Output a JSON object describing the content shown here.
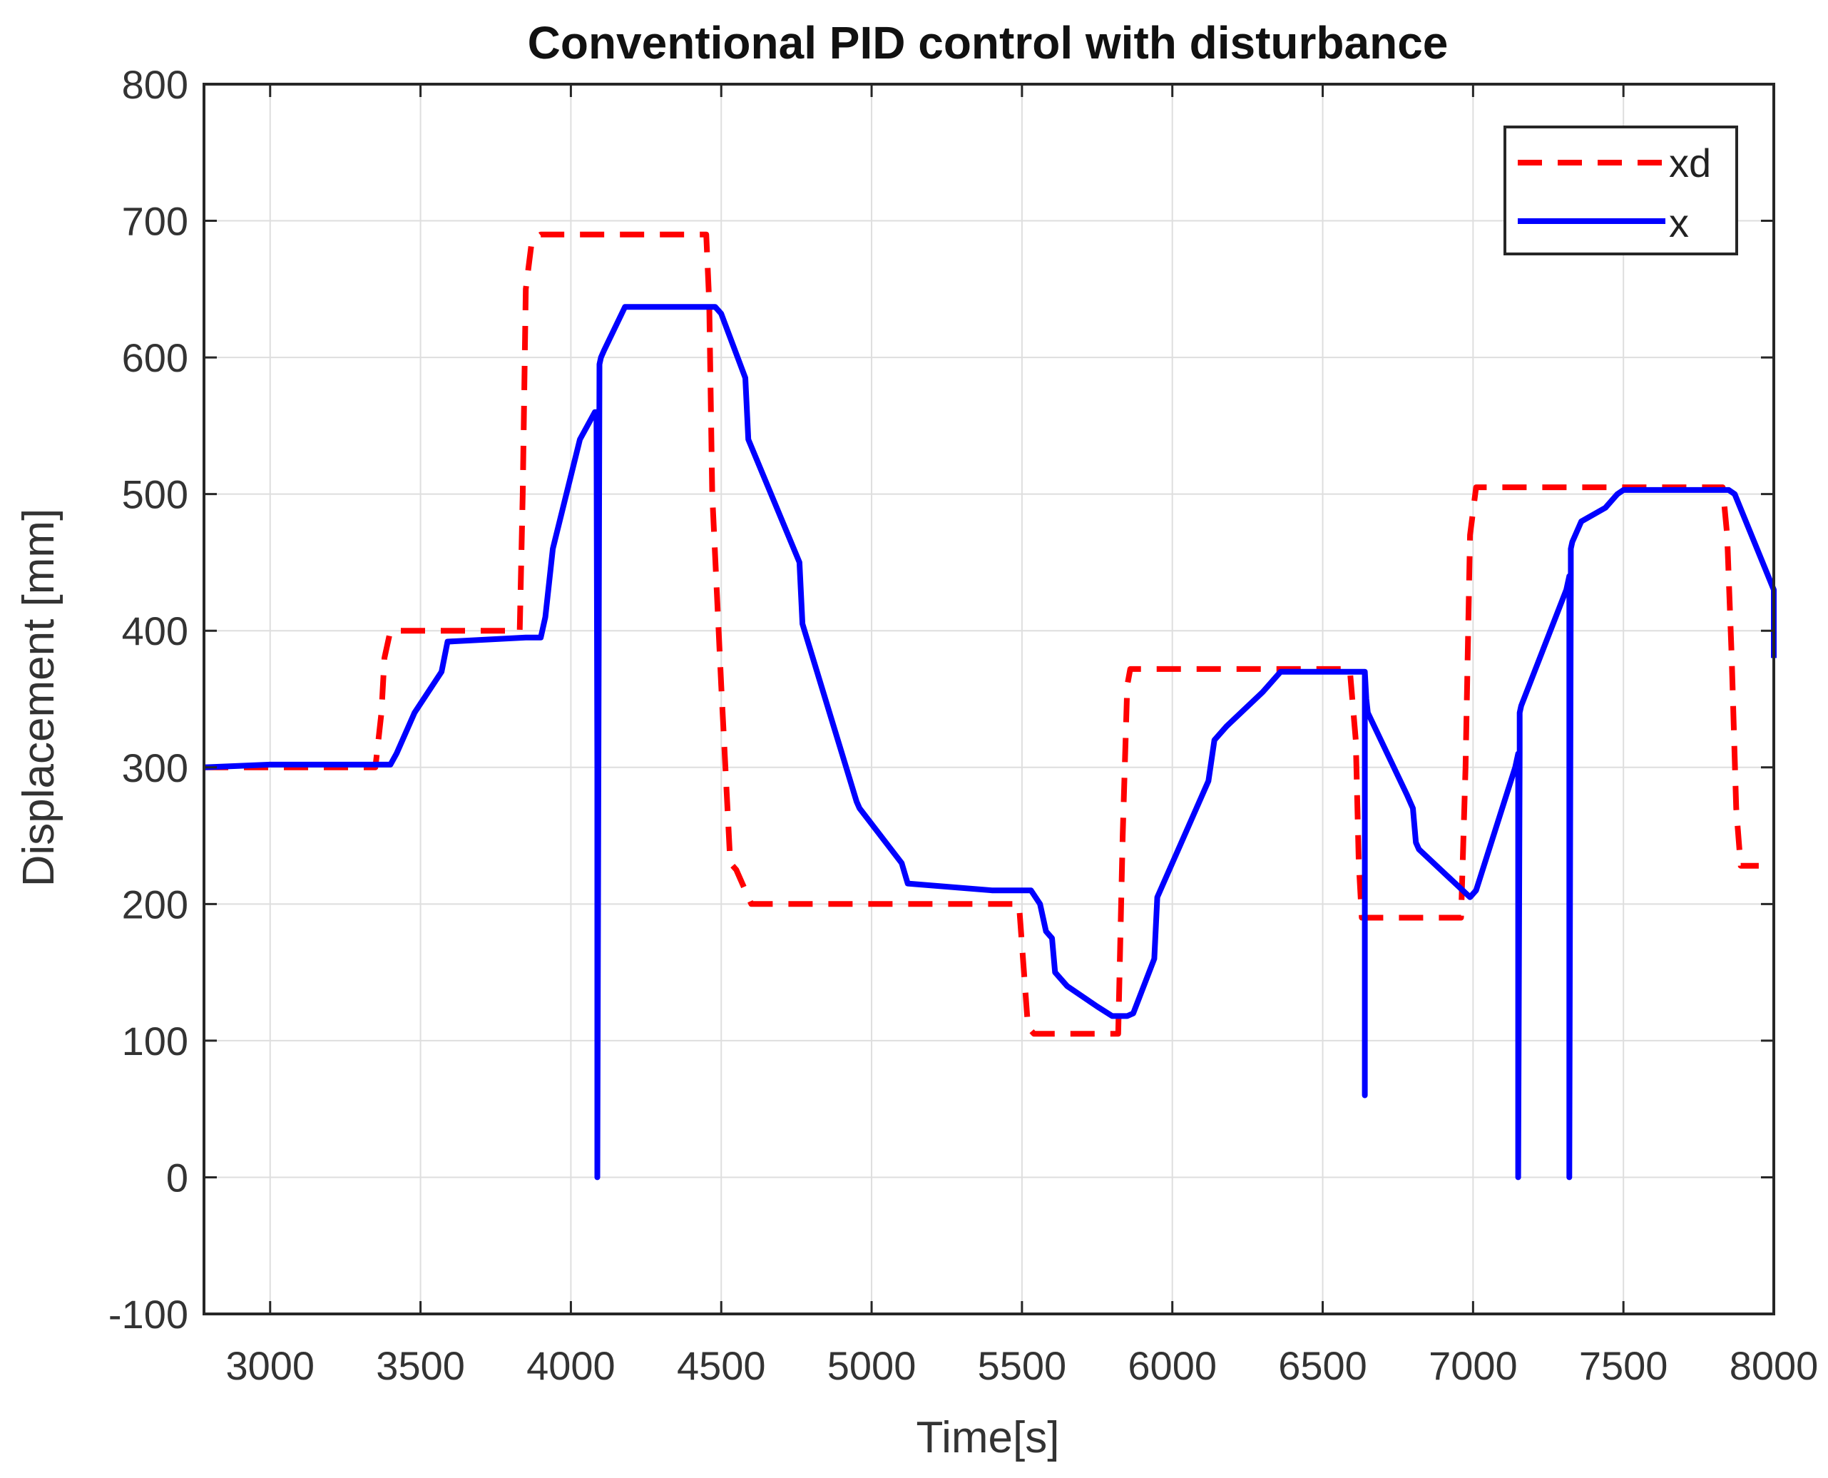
{
  "chart_data": {
    "type": "line",
    "title": "Conventional PID control with disturbance",
    "xlabel": "Time[s]",
    "ylabel": "Displacement [mm]",
    "xlim": [
      2780,
      8000
    ],
    "ylim": [
      -100,
      800
    ],
    "xticks": [
      3000,
      3500,
      4000,
      4500,
      5000,
      5500,
      6000,
      6500,
      7000,
      7500,
      8000
    ],
    "yticks": [
      800,
      700,
      600,
      500,
      400,
      300,
      200,
      100,
      0,
      -100
    ],
    "grid": true,
    "legend": "top-right",
    "series": [
      {
        "name": "xd",
        "color": "#ff0000",
        "style": "dashed",
        "x": [
          2780,
          3350,
          3370,
          3380,
          3400,
          3830,
          3840,
          3850,
          3870,
          3900,
          4450,
          4460,
          4470,
          4500,
          4530,
          4550,
          4600,
          4610,
          5490,
          5500,
          5520,
          5540,
          5820,
          5835,
          5850,
          5860,
          6590,
          6610,
          6620,
          6630,
          6960,
          6975,
          6990,
          7010,
          7830,
          7845,
          7860,
          7875,
          7890,
          7950
        ],
        "y": [
          300,
          300,
          340,
          380,
          400,
          400,
          500,
          650,
          685,
          690,
          690,
          640,
          500,
          360,
          230,
          225,
          200,
          200,
          200,
          170,
          110,
          105,
          105,
          250,
          360,
          372,
          372,
          320,
          230,
          190,
          190,
          300,
          470,
          505,
          505,
          470,
          380,
          270,
          228,
          228
        ]
      },
      {
        "name": "x",
        "color": "#0000ff",
        "style": "solid",
        "x": [
          2780,
          3000,
          3200,
          3400,
          3420,
          3480,
          3570,
          3590,
          3850,
          3900,
          3915,
          3920,
          3940,
          4030,
          4080,
          4085,
          4088,
          4088,
          4095,
          4100,
          4110,
          4180,
          4200,
          4480,
          4500,
          4580,
          4590,
          4760,
          4770,
          4950,
          4960,
          5100,
          5120,
          5400,
          5530,
          5560,
          5580,
          5600,
          5610,
          5650,
          5750,
          5800,
          5850,
          5870,
          5940,
          5950,
          6120,
          6140,
          6180,
          6300,
          6360,
          6640,
          6640,
          6640,
          6645,
          6650,
          6780,
          6800,
          6810,
          6820,
          6990,
          7010,
          7140,
          7150,
          7150,
          7155,
          7155,
          7160,
          7310,
          7320,
          7320,
          7325,
          7325,
          7330,
          7360,
          7440,
          7480,
          7500,
          7820,
          7850,
          7870,
          8000,
          8000
        ],
        "y": [
          300,
          302,
          302,
          302,
          310,
          340,
          370,
          392,
          395,
          395,
          410,
          420,
          460,
          540,
          560,
          560,
          300,
          0,
          595,
          600,
          605,
          637,
          637,
          637,
          632,
          585,
          540,
          450,
          405,
          275,
          270,
          230,
          215,
          210,
          210,
          200,
          180,
          175,
          150,
          140,
          125,
          118,
          118,
          120,
          160,
          205,
          290,
          320,
          330,
          355,
          370,
          370,
          60,
          370,
          350,
          340,
          280,
          270,
          245,
          240,
          205,
          210,
          300,
          310,
          0,
          310,
          340,
          345,
          430,
          440,
          0,
          440,
          460,
          465,
          480,
          490,
          500,
          503,
          503,
          503,
          500,
          430,
          380
        ]
      }
    ]
  }
}
